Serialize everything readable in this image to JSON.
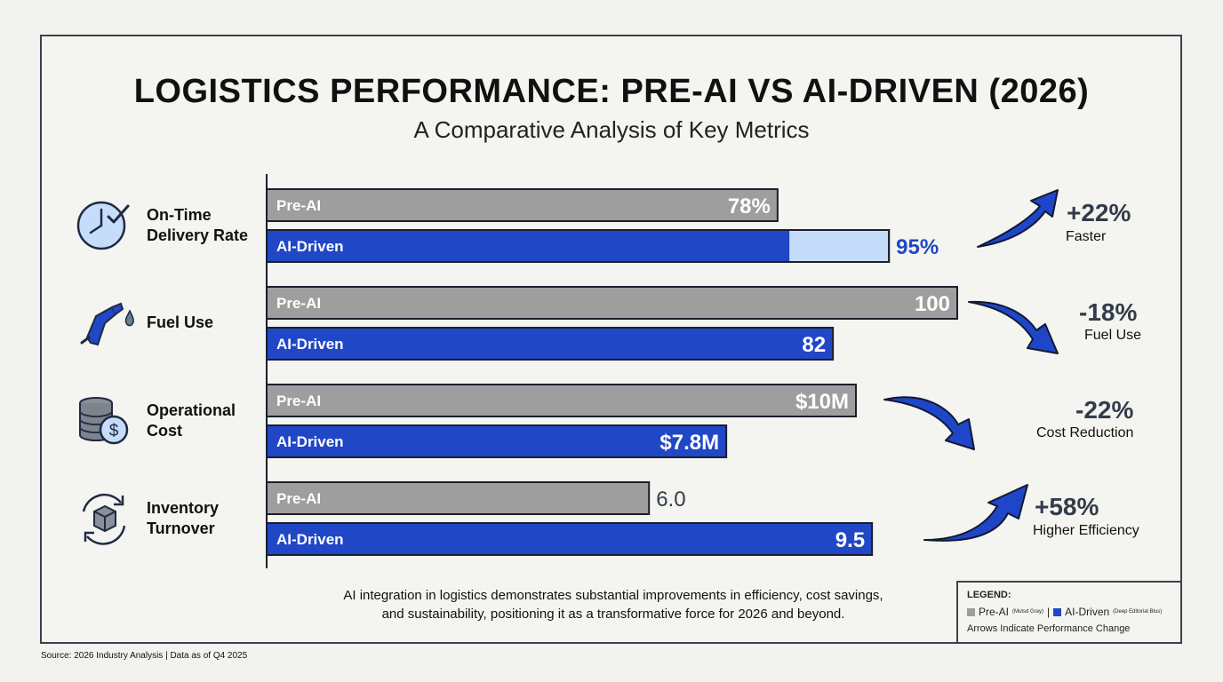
{
  "title": "LOGISTICS PERFORMANCE: PRE-AI VS AI-DRIVEN (2026)",
  "subtitle": "A Comparative Analysis of Key Metrics",
  "colors": {
    "pre_ai": "#9e9e9e",
    "ai_driven": "#2047c6",
    "ai_target_highlight": "#c6dcfb",
    "arrow": "#1f45c8",
    "text_dark": "#333c4a"
  },
  "metrics": [
    {
      "label_line1": "On-Time",
      "label_line2": "Delivery Rate",
      "icon": "clock-check-icon"
    },
    {
      "label_line1": "Fuel Use",
      "label_line2": "",
      "icon": "fuel-pump-icon"
    },
    {
      "label_line1": "Operational",
      "label_line2": "Cost",
      "icon": "coin-stack-dollar-icon"
    },
    {
      "label_line1": "Inventory",
      "label_line2": "Turnover",
      "icon": "box-cycle-icon"
    }
  ],
  "changes": [
    {
      "pct": "+22%",
      "desc": "Faster",
      "direction": "up"
    },
    {
      "pct": "-18%",
      "desc": "Fuel Use",
      "direction": "down"
    },
    {
      "pct": "-22%",
      "desc": "Cost Reduction",
      "direction": "down"
    },
    {
      "pct": "+58%",
      "desc": "Higher Efficiency",
      "direction": "up"
    }
  ],
  "chart_data": {
    "type": "bar",
    "orientation": "horizontal",
    "categories": [
      "On-Time Delivery Rate",
      "Fuel Use",
      "Operational Cost",
      "Inventory Turnover"
    ],
    "series": [
      {
        "name": "Pre-AI",
        "bar_label": "Pre-AI",
        "values": [
          78,
          100,
          10,
          6.0
        ],
        "value_labels": [
          "78%",
          "100",
          "$10M",
          "6.0"
        ]
      },
      {
        "name": "AI-Driven",
        "bar_label": "AI-Driven",
        "values": [
          95,
          82,
          7.8,
          9.5
        ],
        "value_labels": [
          "95%",
          "82",
          "$7.8M",
          "9.5"
        ]
      }
    ],
    "legend": "bottom-right",
    "grid": false
  },
  "summary_line1": "AI integration in logistics demonstrates substantial improvements in efficiency, cost savings,",
  "summary_line2": "and sustainability, positioning it as a transformative force for 2026 and beyond.",
  "legend": {
    "title": "LEGEND:",
    "pre_ai": "Pre-AI",
    "pre_ai_note": "(Mutsd Gray)",
    "separator": "|",
    "ai_driven": "AI-Driven",
    "ai_driven_note": "(Deep Editorial Blus)",
    "arrows_note": "Arrows Indicate Performance Change"
  },
  "source": "Source: 2026 Industry Analysis | Data as of Q4 2025"
}
